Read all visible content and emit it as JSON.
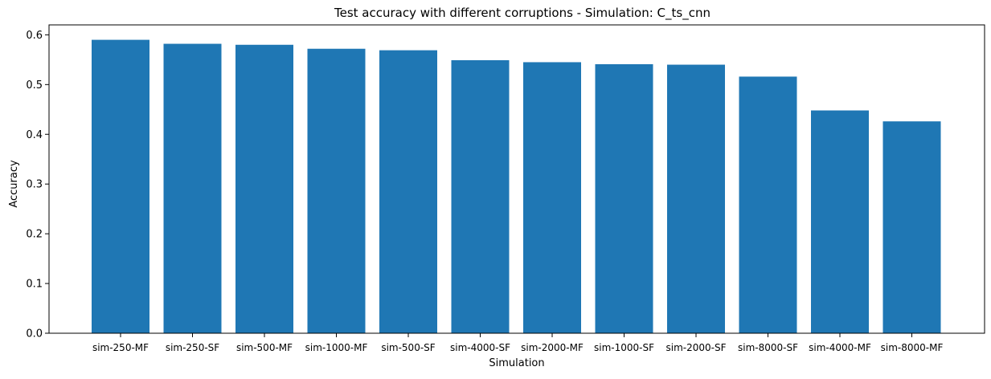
{
  "chart_data": {
    "type": "bar",
    "title": "Test accuracy with different corruptions - Simulation: C_ts_cnn",
    "xlabel": "Simulation",
    "ylabel": "Accuracy",
    "categories": [
      "sim-250-MF",
      "sim-250-SF",
      "sim-500-MF",
      "sim-1000-MF",
      "sim-500-SF",
      "sim-4000-SF",
      "sim-2000-MF",
      "sim-1000-SF",
      "sim-2000-SF",
      "sim-8000-SF",
      "sim-4000-MF",
      "sim-8000-MF"
    ],
    "values": [
      0.59,
      0.582,
      0.58,
      0.572,
      0.569,
      0.549,
      0.545,
      0.541,
      0.54,
      0.516,
      0.448,
      0.426
    ],
    "ylim": [
      0,
      0.62
    ],
    "yticks": [
      0.0,
      0.1,
      0.2,
      0.3,
      0.4,
      0.5,
      0.6
    ],
    "ytick_labels": [
      "0.0",
      "0.1",
      "0.2",
      "0.3",
      "0.4",
      "0.5",
      "0.6"
    ],
    "bar_color": "#1f77b4",
    "grid": false,
    "legend": "none"
  }
}
